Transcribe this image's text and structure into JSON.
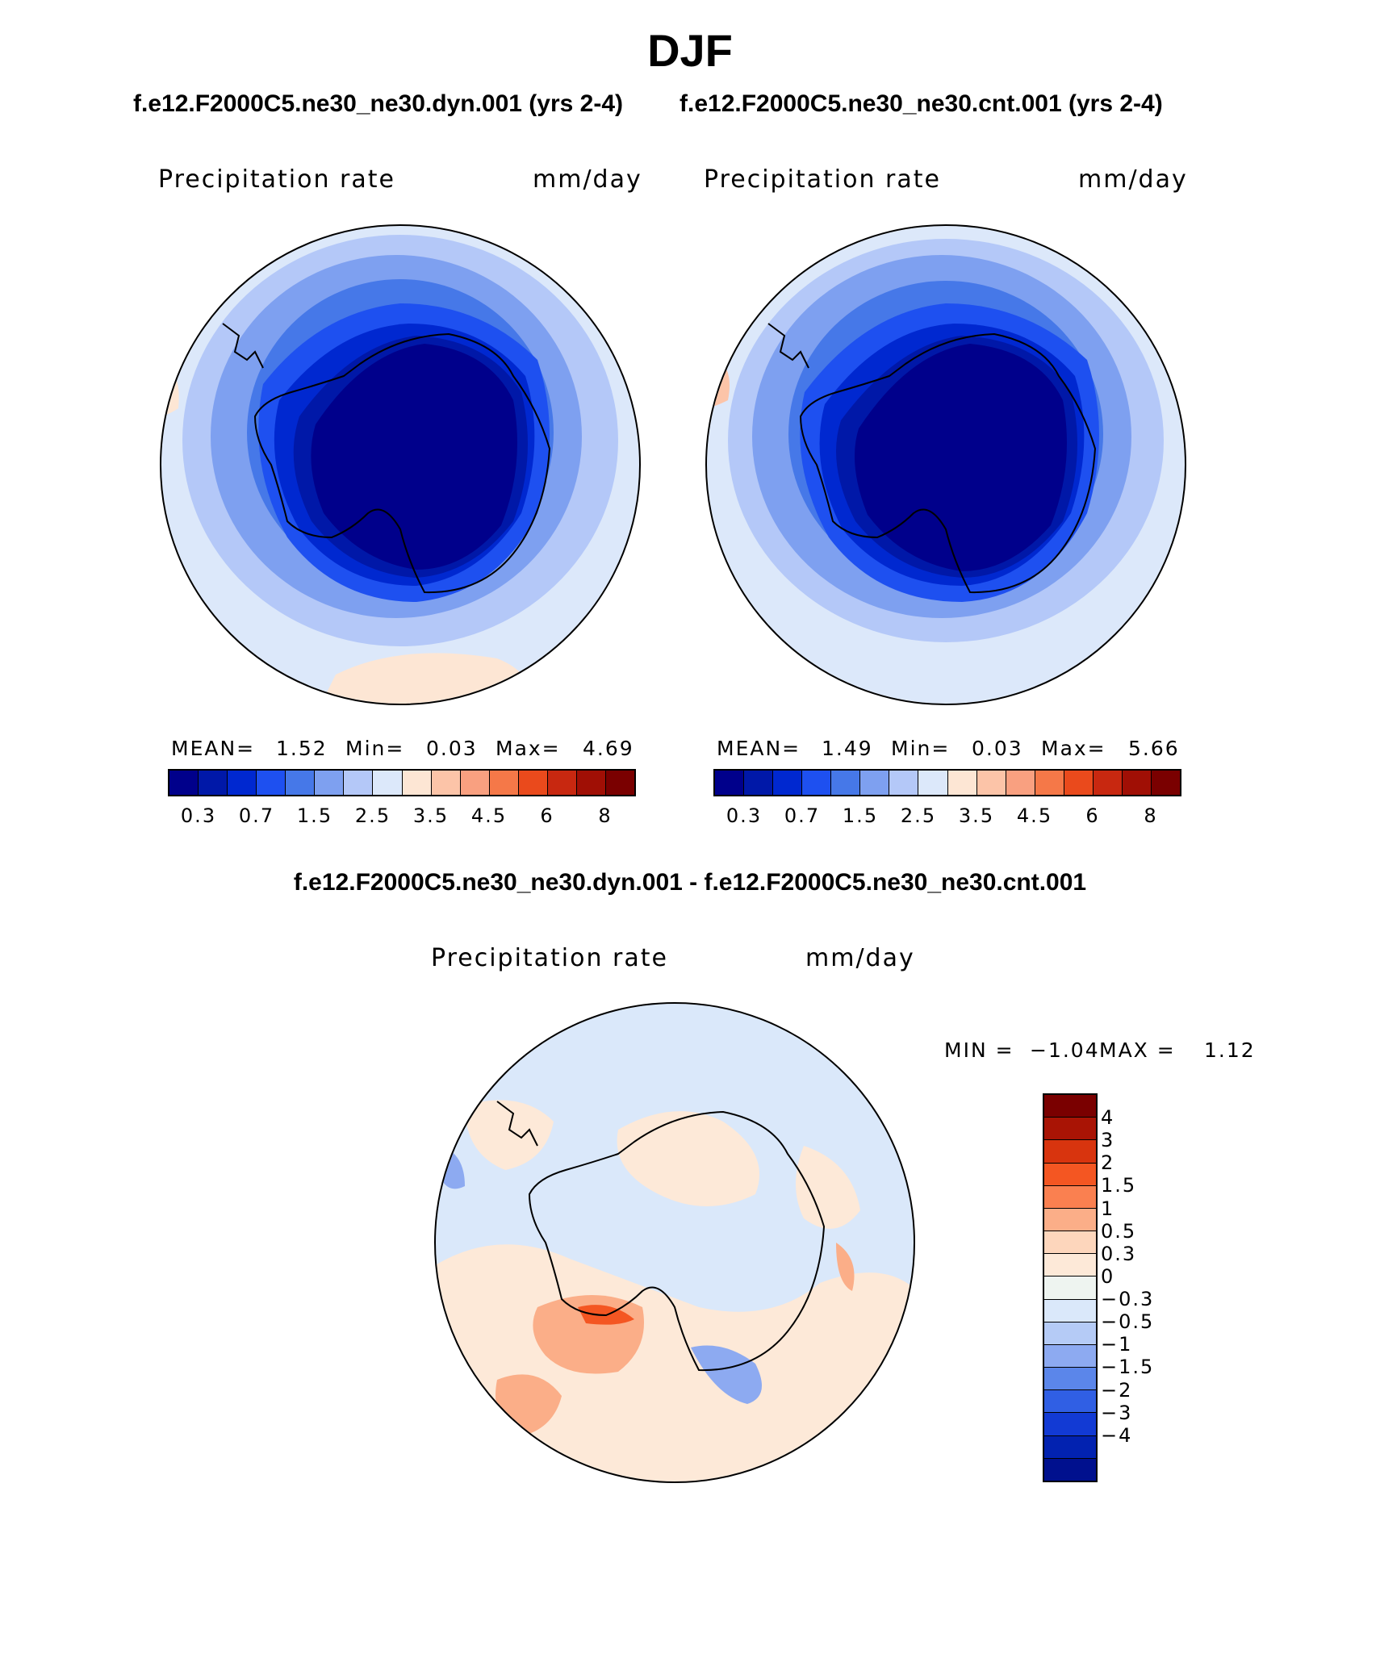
{
  "title": "DJF",
  "panels": {
    "left": {
      "header": "f.e12.F2000C5.ne30_ne30.dyn.001 (yrs 2-4)",
      "variable": "Precipitation rate",
      "units": "mm/day",
      "mean_label": "MEAN=",
      "mean": "1.52",
      "min_label": "Min=",
      "min": "0.03",
      "max_label": "Max=",
      "max": "4.69"
    },
    "right": {
      "header": "f.e12.F2000C5.ne30_ne30.cnt.001 (yrs 2-4)",
      "variable": "Precipitation rate",
      "units": "mm/day",
      "mean_label": "MEAN=",
      "mean": "1.49",
      "min_label": "Min=",
      "min": "0.03",
      "max_label": "Max=",
      "max": "5.66"
    },
    "diff": {
      "header": "f.e12.F2000C5.ne30_ne30.dyn.001 - f.e12.F2000C5.ne30_ne30.cnt.001",
      "variable": "Precipitation rate",
      "units": "mm/day",
      "min_label": "MIN =",
      "min": "−1.04",
      "max_label": "MAX =",
      "max": "1.12"
    }
  },
  "colorbar_main": {
    "colors": [
      "#00008b",
      "#0018a8",
      "#0028d0",
      "#1e50f0",
      "#4678e8",
      "#7ea0f0",
      "#b4c8f8",
      "#dce8fa",
      "#fde6d4",
      "#fcc4a8",
      "#f9a080",
      "#f57848",
      "#ea4a1c",
      "#c82810",
      "#a00f05",
      "#7a0000"
    ],
    "ticks": [
      "0.3",
      "0.7",
      "1.5",
      "2.5",
      "3.5",
      "4.5",
      "6",
      "8"
    ]
  },
  "colorbar_diff": {
    "colors": [
      "#7a0000",
      "#a91405",
      "#d8340e",
      "#f45622",
      "#fa8050",
      "#fbae88",
      "#fdd6bc",
      "#fde9d8",
      "#eef4f0",
      "#dae8fa",
      "#b5cbf6",
      "#8daaf1",
      "#5b86ea",
      "#305fe4",
      "#123ad4",
      "#0222b0",
      "#00108e"
    ],
    "ticks": [
      "4",
      "3",
      "2",
      "1.5",
      "1",
      "0.5",
      "0.3",
      "0",
      "−0.3",
      "−0.5",
      "−1",
      "−1.5",
      "−2",
      "−3",
      "−4"
    ]
  },
  "map_colors": {
    "deep": "#00008b",
    "d1": "#0018a8",
    "d2": "#0028d0",
    "d3": "#1e50f0",
    "d4": "#4678e8",
    "d5": "#7ea0f0",
    "d6": "#b4c8f8",
    "d7": "#dce8fa",
    "w1": "#fde6d4",
    "w2": "#fcc4a8",
    "w3": "#f9a080",
    "w4": "#f57848",
    "diff_bg": "#dae8fa",
    "diff_warm1": "#fde9d8",
    "diff_warm2": "#fbae88",
    "diff_warm3": "#f45622",
    "diff_cool": "#8daaf1"
  }
}
